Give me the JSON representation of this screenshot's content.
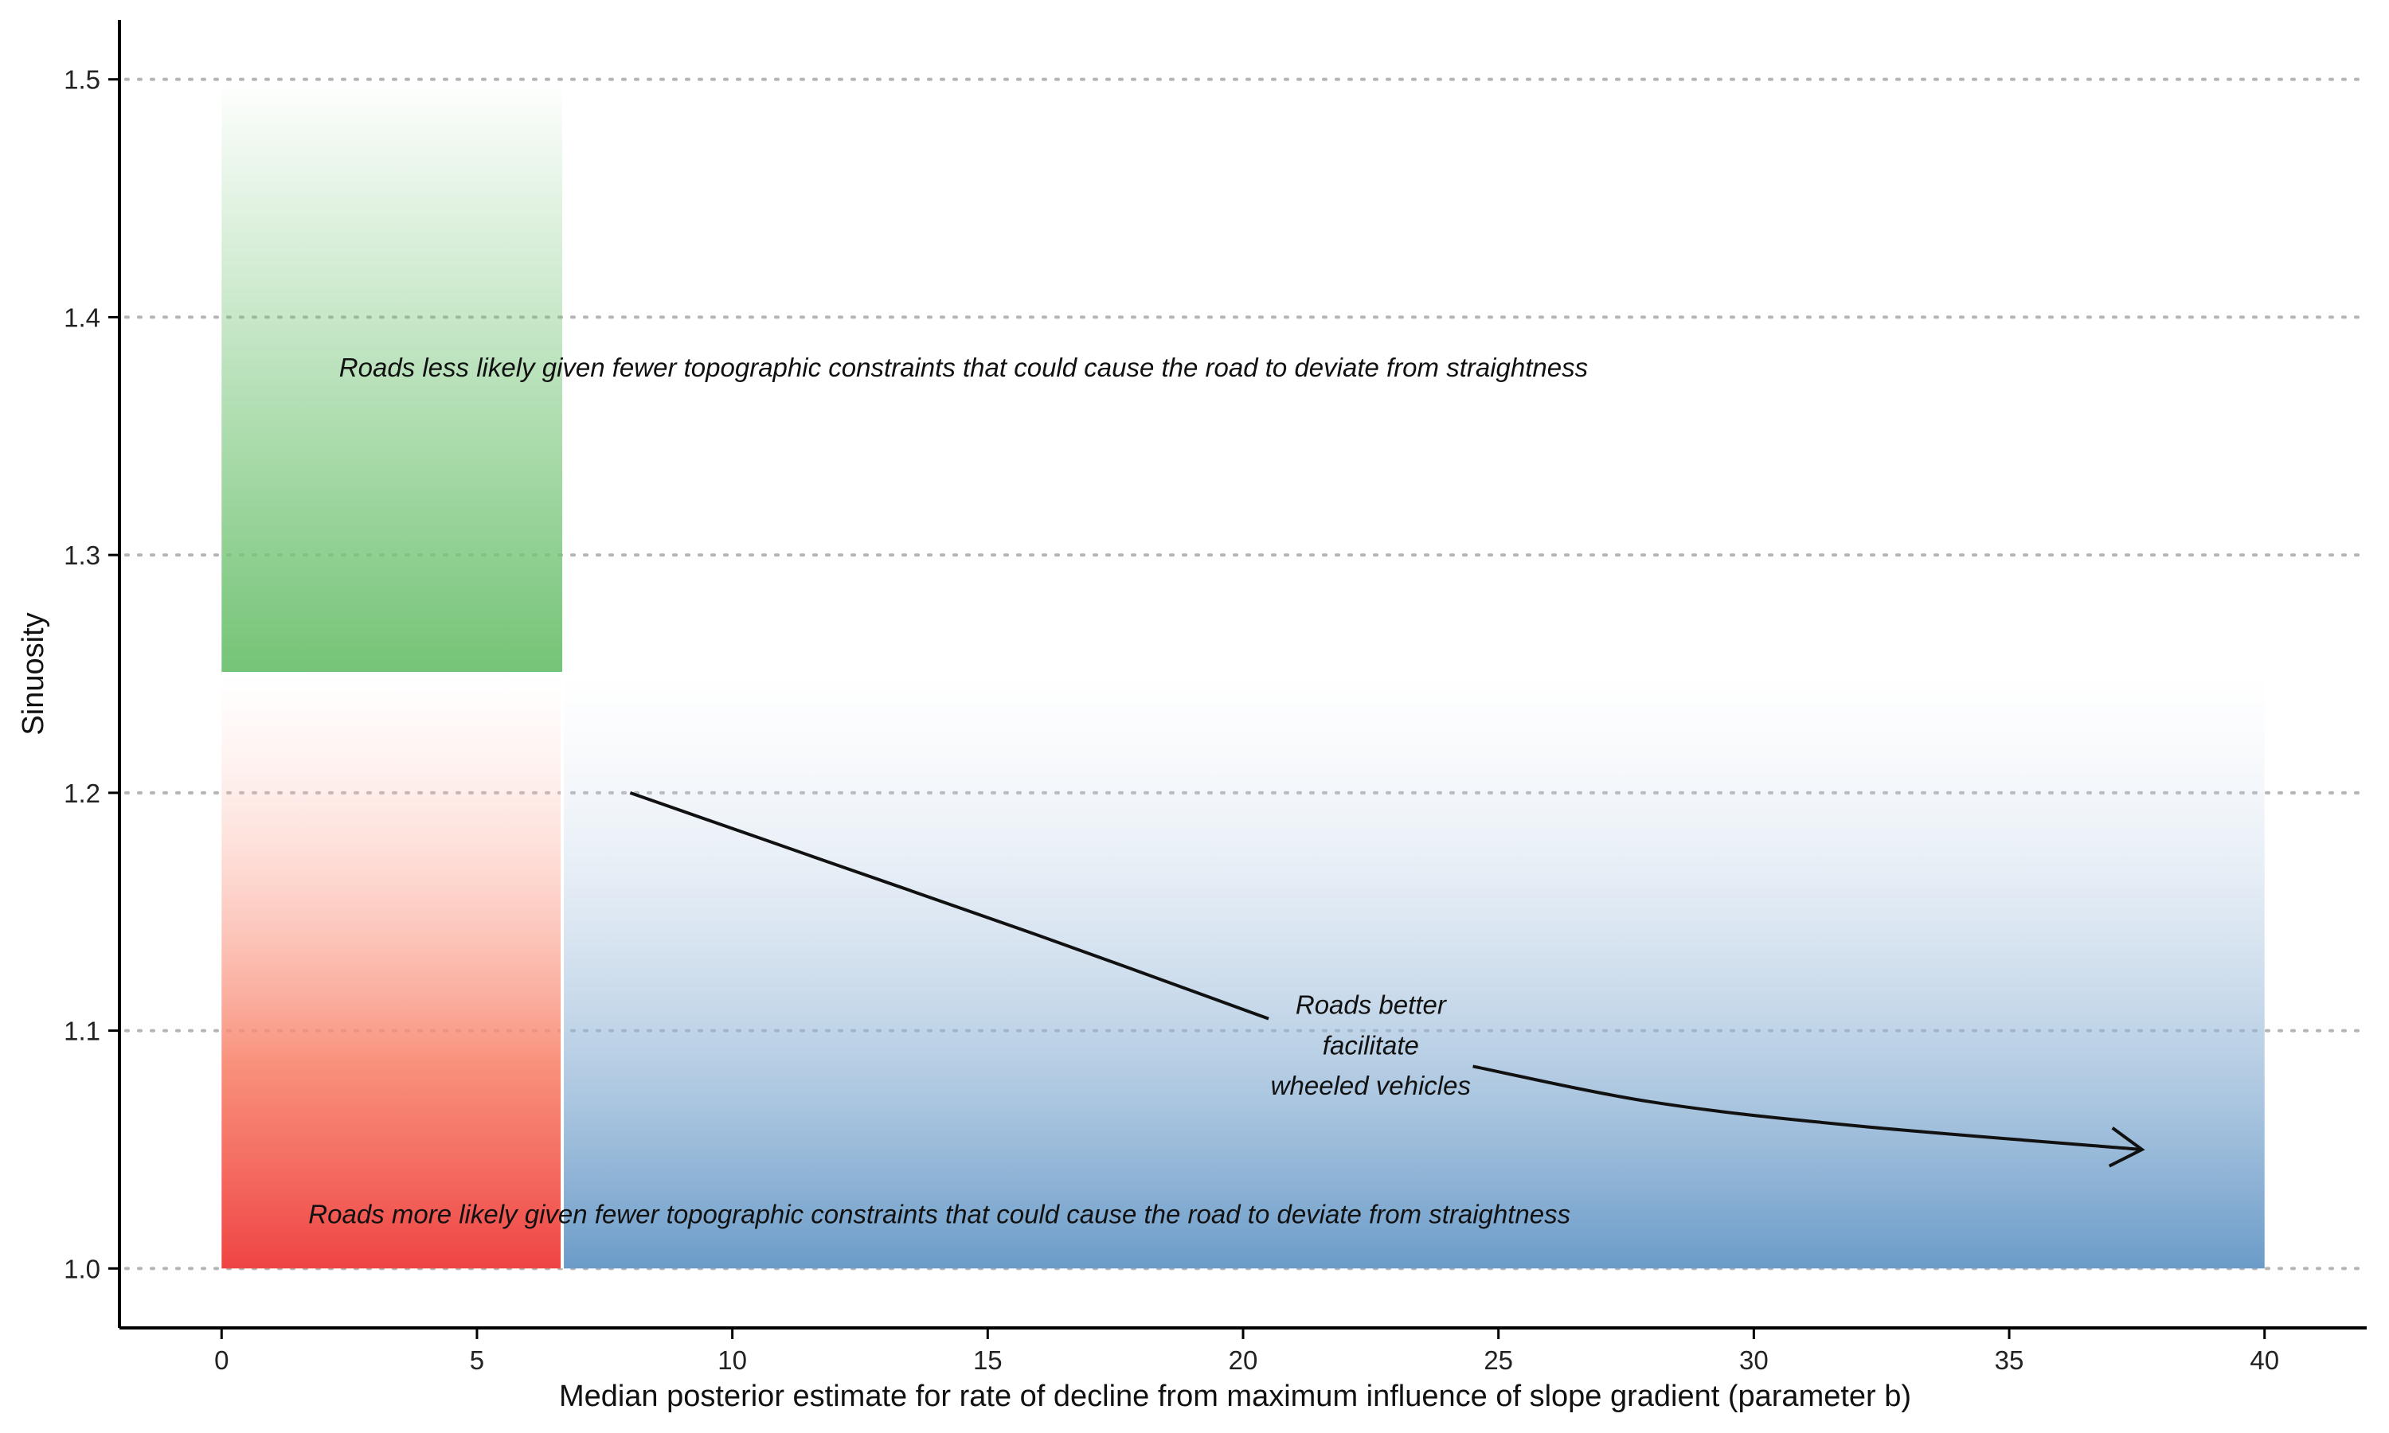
{
  "chart_data": {
    "type": "area",
    "title": "",
    "xlabel": "Median posterior estimate for rate of decline from maximum influence of slope gradient (parameter b)",
    "ylabel": "Sinuosity",
    "xlim": [
      -2,
      42
    ],
    "ylim": [
      0.975,
      1.525
    ],
    "x_ticks": [
      0,
      5,
      10,
      15,
      20,
      25,
      30,
      35,
      40
    ],
    "x_tick_labels": [
      "0",
      "5",
      "10",
      "15",
      "20",
      "25",
      "30",
      "35",
      "40"
    ],
    "y_ticks": [
      1.0,
      1.1,
      1.2,
      1.3,
      1.4,
      1.5
    ],
    "y_tick_labels": [
      "1.0",
      "1.1",
      "1.2",
      "1.3",
      "1.4",
      "1.5"
    ],
    "grid": "horizontal dotted",
    "regions": [
      {
        "id": "green",
        "x": [
          0,
          6.67
        ],
        "y": [
          1.25,
          1.5
        ],
        "color": "#74c476",
        "fade": "to-top"
      },
      {
        "id": "red",
        "x": [
          0,
          6.67
        ],
        "y": [
          1.0,
          1.25
        ],
        "color": "#ef4444",
        "fade": "to-top"
      },
      {
        "id": "blue",
        "x": [
          6.67,
          40
        ],
        "y": [
          1.0,
          1.25
        ],
        "color": "#6a9bc8",
        "fade": "to-top"
      }
    ],
    "curve": {
      "points": [
        [
          8.0,
          1.2
        ],
        [
          12.0,
          1.17
        ],
        [
          16.0,
          1.14
        ],
        [
          20.5,
          1.105
        ],
        [
          24.5,
          1.085
        ],
        [
          28.0,
          1.07
        ],
        [
          32.0,
          1.06
        ],
        [
          37.6,
          1.05
        ]
      ],
      "gap": [
        20.55,
        24.4
      ],
      "arrow_end": true
    },
    "annotations": [
      {
        "id": "top",
        "text": "Roads less likely given fewer topographic constraints that could cause the road to deviate from straightness",
        "x": 2.3,
        "y": 1.375,
        "anchor": "start"
      },
      {
        "id": "bottom",
        "text": "Roads more likely given fewer topographic constraints that could cause the road to deviate from straightness",
        "x": 1.7,
        "y": 1.019,
        "anchor": "start"
      },
      {
        "id": "mid",
        "lines": [
          "Roads better",
          "facilitate",
          "wheeled vehicles"
        ],
        "x": 22.5,
        "y": [
          1.107,
          1.09,
          1.073
        ],
        "anchor": "middle"
      }
    ]
  }
}
